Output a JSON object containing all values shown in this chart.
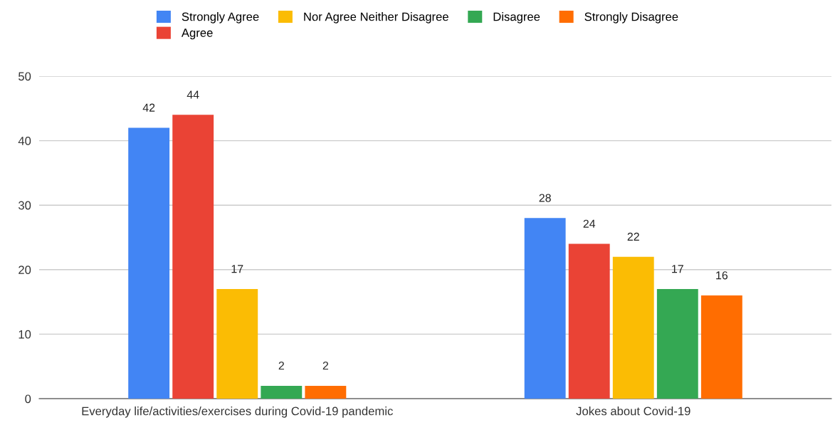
{
  "chart_data": {
    "type": "bar",
    "categories": [
      "Everyday life/activities/exercises during Covid-19 pandemic",
      "Jokes about Covid-19"
    ],
    "series": [
      {
        "name": "Strongly Agree",
        "color": "#4285f4",
        "values": [
          42,
          28
        ]
      },
      {
        "name": "Agree",
        "color": "#ea4335",
        "values": [
          44,
          24
        ]
      },
      {
        "name": "Nor Agree Neither Disagree",
        "color": "#fbbc04",
        "values": [
          17,
          22
        ]
      },
      {
        "name": "Disagree",
        "color": "#34a853",
        "values": [
          2,
          17
        ]
      },
      {
        "name": "Strongly Disagree",
        "color": "#ff6d01",
        "values": [
          2,
          16
        ]
      }
    ],
    "ylim": [
      0,
      50
    ],
    "yticks": [
      0,
      10,
      20,
      30,
      40,
      50
    ],
    "grid": "y",
    "legend": "top",
    "data_labels": true
  }
}
